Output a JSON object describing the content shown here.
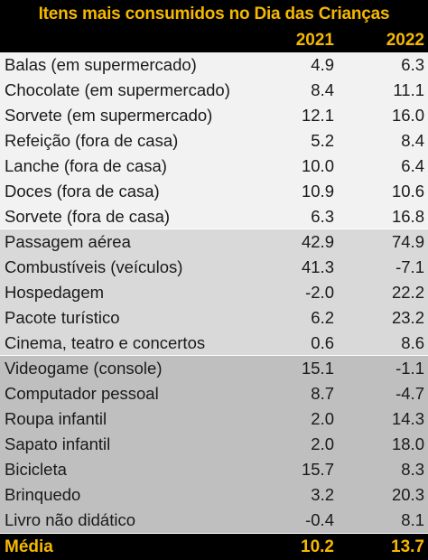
{
  "chart_data": {
    "type": "table",
    "title": "Itens mais consumidos no Dia das Crianças",
    "columns": [
      "2021",
      "2022"
    ],
    "groups": [
      {
        "rows": [
          {
            "label": "Balas (em supermercado)",
            "values": [
              "4.9",
              "6.3"
            ]
          },
          {
            "label": "Chocolate (em supermercado)",
            "values": [
              "8.4",
              "11.1"
            ]
          },
          {
            "label": "Sorvete (em supermercado)",
            "values": [
              "12.1",
              "16.0"
            ]
          },
          {
            "label": "Refeição  (fora de casa)",
            "values": [
              "5.2",
              "8.4"
            ]
          },
          {
            "label": "Lanche  (fora de casa)",
            "values": [
              "10.0",
              "6.4"
            ]
          },
          {
            "label": "Doces (fora de casa)",
            "values": [
              "10.9",
              "10.6"
            ]
          },
          {
            "label": "Sorvete  (fora de casa)",
            "values": [
              "6.3",
              "16.8"
            ]
          }
        ]
      },
      {
        "rows": [
          {
            "label": "Passagem aérea",
            "values": [
              "42.9",
              "74.9"
            ]
          },
          {
            "label": "Combustíveis (veículos)",
            "values": [
              "41.3",
              "-7.1"
            ]
          },
          {
            "label": "Hospedagem",
            "values": [
              "-2.0",
              "22.2"
            ]
          },
          {
            "label": "Pacote turístico",
            "values": [
              "6.2",
              "23.2"
            ]
          },
          {
            "label": "Cinema, teatro e concertos",
            "values": [
              "0.6",
              "8.6"
            ]
          }
        ]
      },
      {
        "rows": [
          {
            "label": "Videogame (console)",
            "values": [
              "15.1",
              "-1.1"
            ]
          },
          {
            "label": "Computador pessoal",
            "values": [
              "8.7",
              "-4.7"
            ]
          },
          {
            "label": "Roupa infantil",
            "values": [
              "2.0",
              "14.3"
            ]
          },
          {
            "label": "Sapato infantil",
            "values": [
              "2.0",
              "18.0"
            ]
          },
          {
            "label": "Bicicleta",
            "values": [
              "15.7",
              "8.3"
            ]
          },
          {
            "label": "Brinquedo",
            "values": [
              "3.2",
              "20.3"
            ]
          },
          {
            "label": "Livro não didático",
            "values": [
              "-0.4",
              "8.1"
            ]
          }
        ]
      }
    ],
    "footer": {
      "label": "Média",
      "values": [
        "10.2",
        "13.7"
      ]
    }
  },
  "colors": {
    "header_bg": "#000000",
    "header_text": "#f5b800",
    "group_1_bg": "#f2f2f2",
    "group_2_bg": "#d9d9d9",
    "group_3_bg": "#bfbfbf",
    "body_text": "#1a1a1a"
  }
}
